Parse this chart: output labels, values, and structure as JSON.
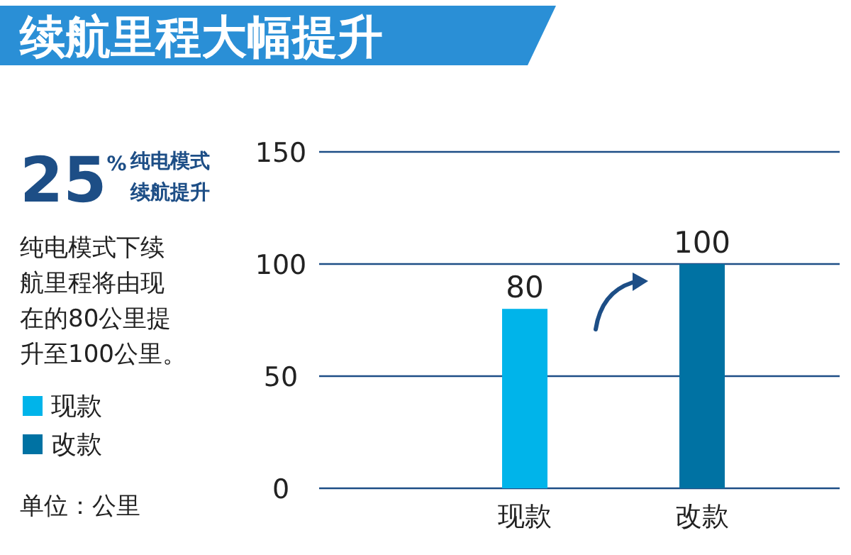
{
  "chart_data": {
    "type": "bar",
    "title": "续航里程大幅提升",
    "categories": [
      "现款",
      "改款"
    ],
    "series": [
      {
        "name": "现款",
        "color": "#00b4ea",
        "values": [
          80,
          null
        ]
      },
      {
        "name": "改款",
        "color": "#0072a3",
        "values": [
          null,
          100
        ]
      }
    ],
    "ylim": [
      0,
      150
    ],
    "yticks": [
      0,
      50,
      100,
      150
    ],
    "grid": "y",
    "data_labels": true,
    "legend": "left",
    "annotations": [
      "25$^{%}$",
      "纯电模式续航提升",
      "纯电模式下续航里程将由现在的80公里提升至100公里。",
      "单位：公里"
    ]
  }
}
